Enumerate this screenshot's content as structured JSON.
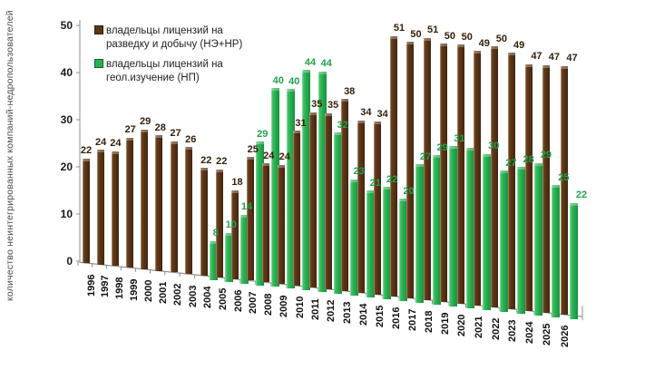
{
  "axes": {
    "y": {
      "title": "количество неинтегрированных компаний-недропользователей",
      "ticks": [
        0,
        10,
        20,
        30,
        40,
        50
      ],
      "range": [
        0,
        50
      ]
    },
    "x": {
      "label": "",
      "tick_rotation": 90
    }
  },
  "legend": {
    "position": "top-left",
    "items": [
      {
        "label": "владельцы лицензий на разведку и добычу (НЭ+НР)",
        "color": "#5b3517"
      },
      {
        "label": "владельцы лицензий на геол.изучение (НП)",
        "color": "#28b050"
      }
    ]
  },
  "chart_data": {
    "type": "bar",
    "style": "3d-perspective",
    "grid": false,
    "title": "",
    "xlabel": "",
    "ylabel": "количество неинтегрированных компаний-недропользователей",
    "ylim": [
      0,
      50
    ],
    "categories": [
      "1996",
      "1997",
      "1998",
      "1999",
      "2000",
      "2001",
      "2002",
      "2003",
      "2004",
      "2005",
      "2006",
      "2007",
      "2008",
      "2009",
      "2010",
      "2011",
      "2012",
      "2013",
      "2014",
      "2015",
      "2016",
      "2017",
      "2018",
      "2019",
      "2020",
      "2021",
      "2022",
      "2023",
      "2024",
      "2025",
      "2026"
    ],
    "series": [
      {
        "name": "владельцы лицензий на разведку и добычу (НЭ+НР)",
        "color": "#5b3517",
        "values": [
          22,
          24,
          24,
          27,
          29,
          28,
          27,
          26,
          22,
          22,
          18,
          25,
          24,
          24,
          31,
          35,
          35,
          38,
          34,
          34,
          51,
          50,
          51,
          50,
          50,
          49,
          50,
          49,
          47,
          47,
          47
        ]
      },
      {
        "name": "владельцы лицензий на геол.изучение (НП)",
        "color": "#28b050",
        "values": [
          null,
          null,
          null,
          null,
          null,
          null,
          null,
          null,
          8,
          10,
          14,
          29,
          40,
          40,
          44,
          44,
          32,
          23,
          21,
          22,
          20,
          27,
          29,
          31,
          31,
          30,
          27,
          28,
          29,
          25,
          22
        ],
        "label_hidden_categories": [
          "2020"
        ]
      }
    ],
    "bar_value_labels": true
  }
}
